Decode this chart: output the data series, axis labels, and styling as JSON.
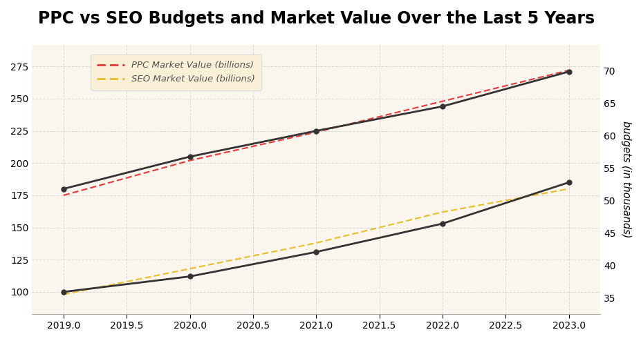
{
  "title": "PPC vs SEO Budgets and Market Value Over the Last 5 Years",
  "title_fontsize": 17,
  "title_fontweight": "bold",
  "background_color": "#ffffff",
  "plot_background_color": "#faf6ee",
  "grid_color": "#d8d8d8",
  "years": [
    2019,
    2020,
    2021,
    2022,
    2023
  ],
  "ppc_budget": [
    180,
    205,
    225,
    244,
    271
  ],
  "seo_budget": [
    100,
    112,
    131,
    153,
    185
  ],
  "ppc_market": [
    175,
    202,
    224,
    248,
    272
  ],
  "seo_market": [
    98,
    118,
    138,
    162,
    180
  ],
  "ppc_line_color": "#333333",
  "seo_line_color": "#333333",
  "ppc_dashed_color": "#e84040",
  "seo_dashed_color": "#e8c030",
  "legend_label_ppc": "PPC Market Value (billions)",
  "legend_label_seo": "SEO Market Value (billions)",
  "ylabel_right": "budgets (in thousands)",
  "ylim_left": [
    83,
    292
  ],
  "ylim_right": [
    32.5,
    74
  ],
  "left_yticks": [
    100,
    125,
    150,
    175,
    200,
    225,
    250,
    275
  ],
  "right_yticks": [
    35,
    40,
    45,
    50,
    55,
    60,
    65,
    70
  ],
  "line_width": 2.0,
  "marker_size": 5,
  "marker_style": "o",
  "dashed_linewidth": 1.6,
  "legend_fontsize": 9.5,
  "tick_fontsize": 10,
  "xlim": [
    2018.75,
    2023.25
  ]
}
